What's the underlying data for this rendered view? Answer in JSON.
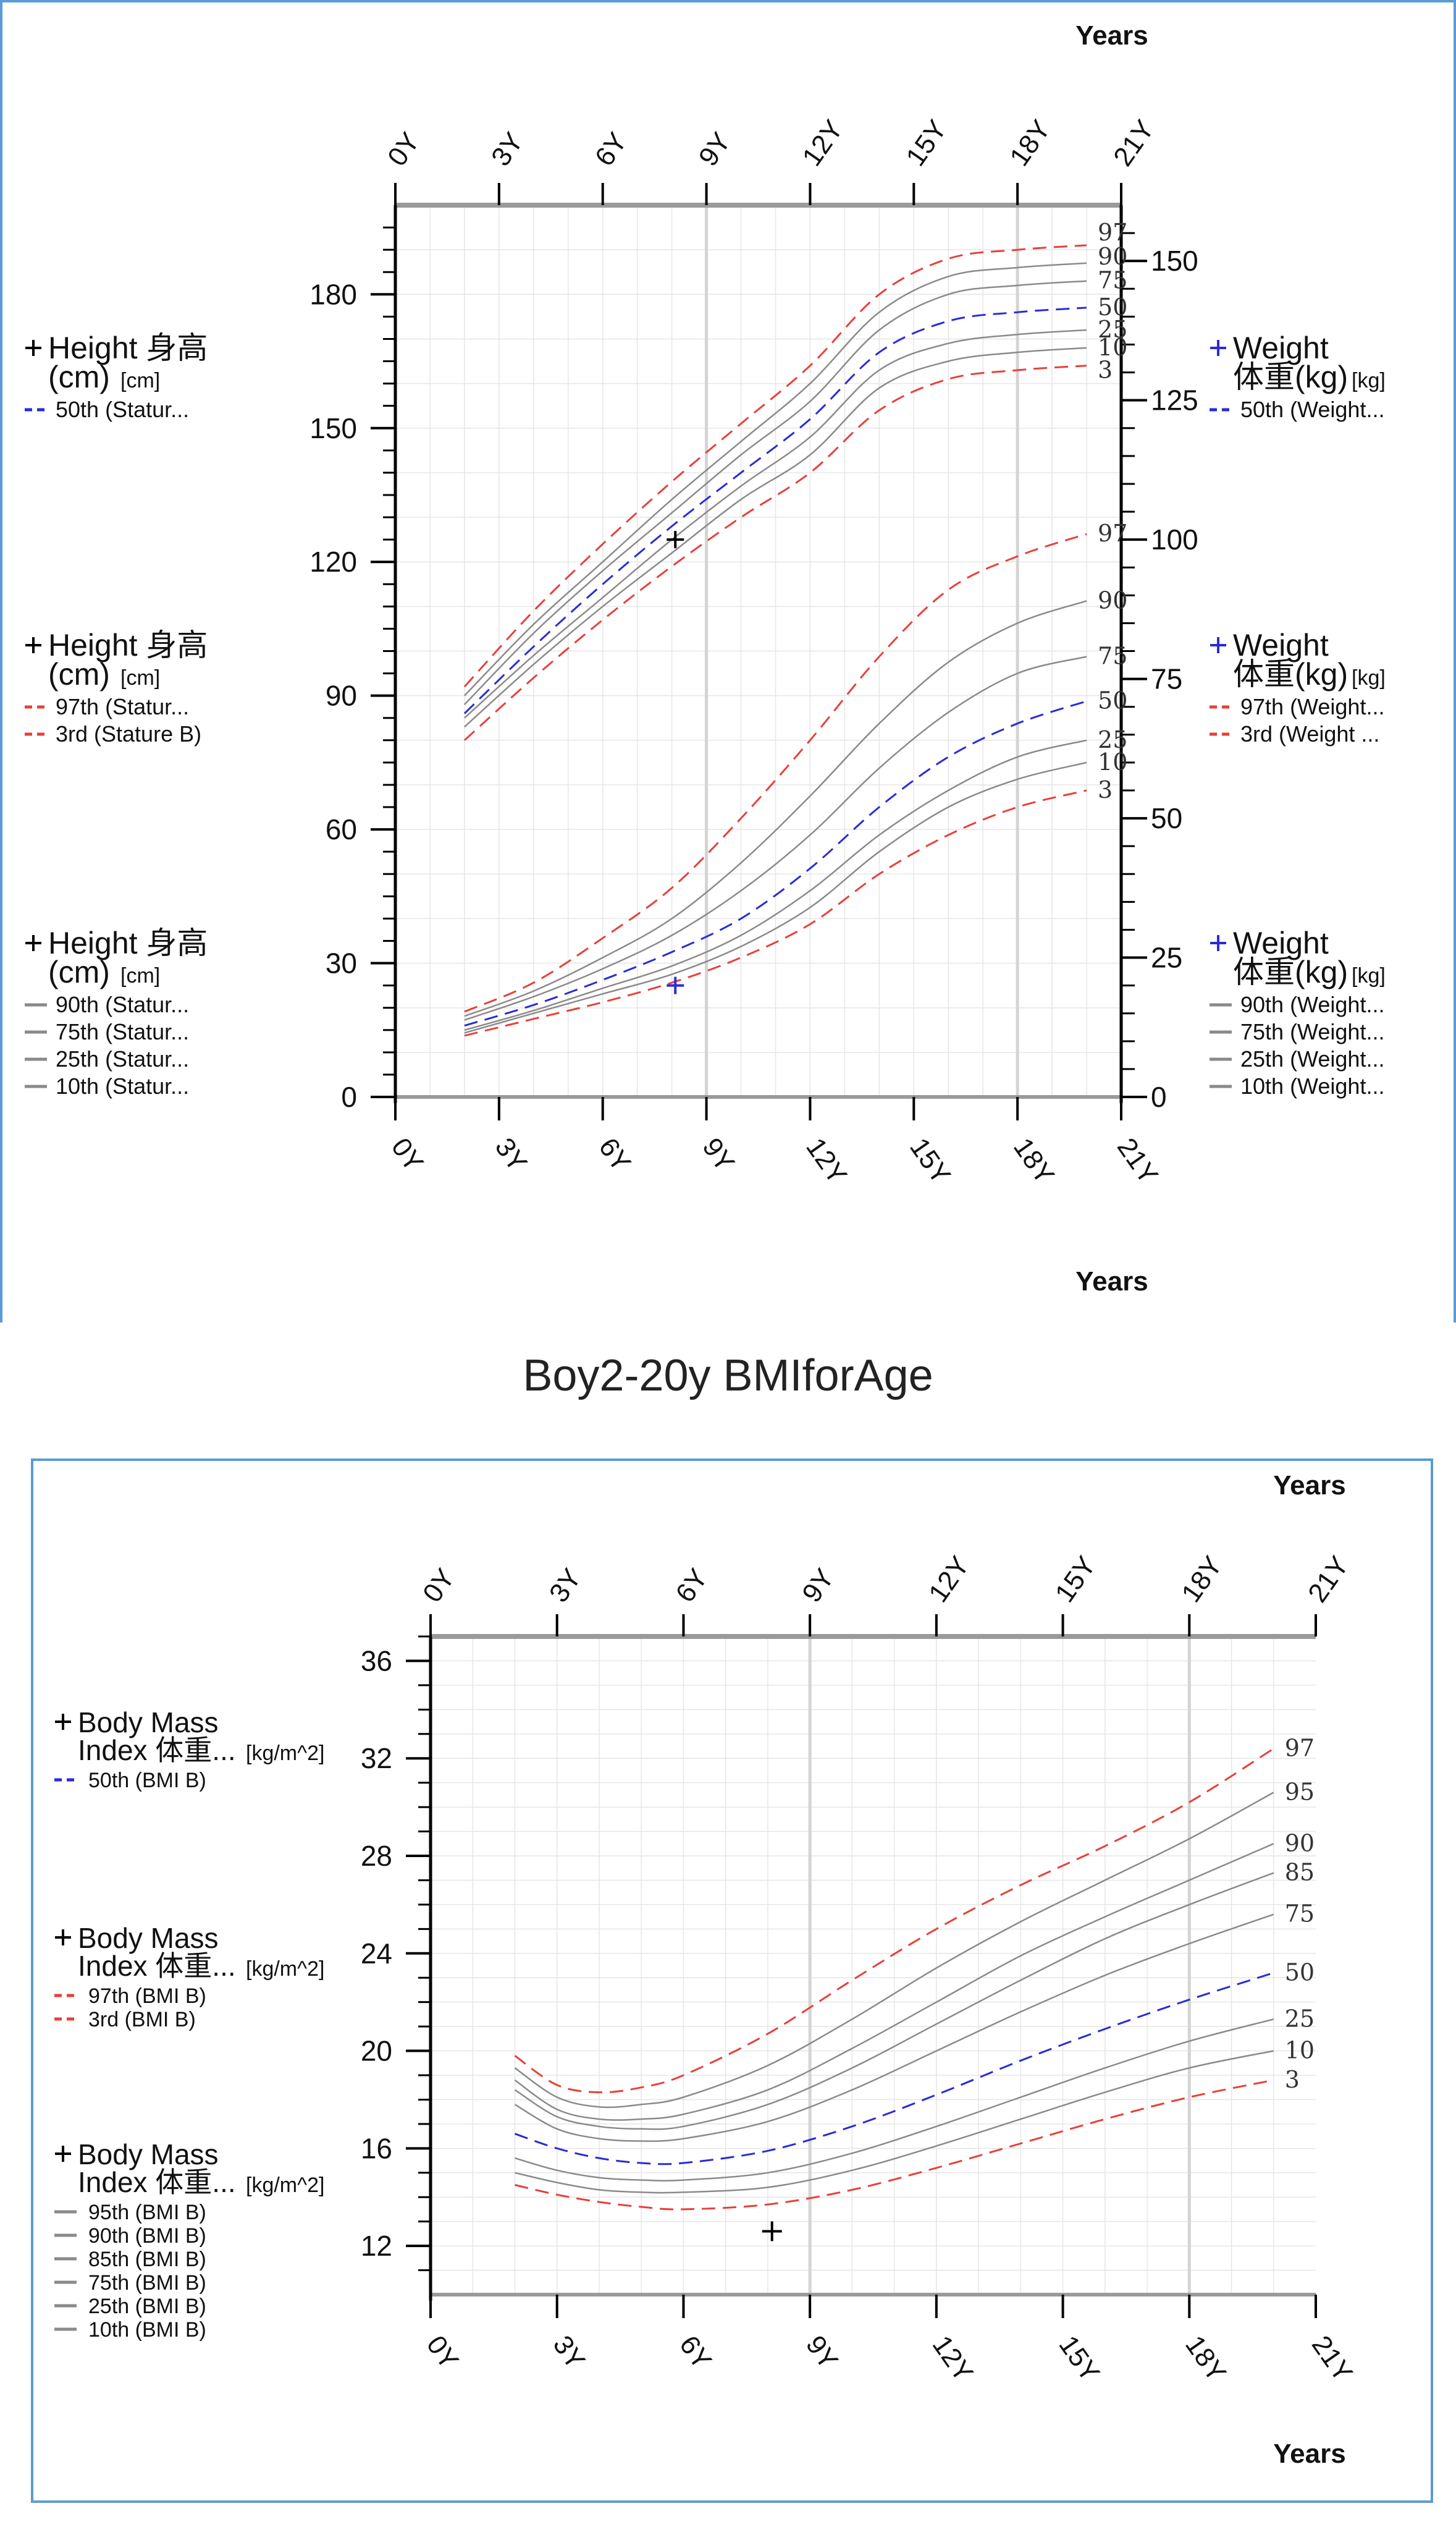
{
  "chart_data": [
    {
      "type": "line",
      "title": "",
      "x_axis": {
        "label": "Years",
        "range": [
          0,
          21
        ],
        "ticks": [
          "0Y",
          "3Y",
          "6Y",
          "9Y",
          "12Y",
          "15Y",
          "18Y",
          "21Y"
        ]
      },
      "left_axis": {
        "label": "Height 身高 (cm)",
        "unit": "[cm]",
        "range": [
          0,
          200
        ],
        "ticks": [
          "0",
          "30",
          "60",
          "90",
          "120",
          "150",
          "180"
        ]
      },
      "right_axis": {
        "label": "Weight 体重(kg)",
        "unit": "[kg]",
        "range": [
          0,
          160
        ],
        "ticks": [
          "0",
          "25",
          "50",
          "75",
          "100",
          "125",
          "150"
        ]
      },
      "legend_groups": [
        {
          "title_a": "Height 身高",
          "title_b": "(cm)",
          "unit": "[cm]",
          "side": "left",
          "items": [
            {
              "text": "50th (Statur...",
              "style": "dashed-blue"
            }
          ]
        },
        {
          "title_a": "Height 身高",
          "title_b": "(cm)",
          "unit": "[cm]",
          "side": "left",
          "items": [
            {
              "text": "97th (Statur...",
              "style": "dashed-red"
            },
            {
              "text": "3rd (Stature B)",
              "style": "dashed-red"
            }
          ]
        },
        {
          "title_a": "Height 身高",
          "title_b": "(cm)",
          "unit": "[cm]",
          "side": "left",
          "items": [
            {
              "text": "90th (Statur...",
              "style": "solid-gray"
            },
            {
              "text": "75th (Statur...",
              "style": "solid-gray"
            },
            {
              "text": "25th (Statur...",
              "style": "solid-gray"
            },
            {
              "text": "10th (Statur...",
              "style": "solid-gray"
            }
          ]
        },
        {
          "title_a": "Weight",
          "title_b": "体重(kg)",
          "unit": "[kg]",
          "side": "right",
          "items": [
            {
              "text": "50th (Weight...",
              "style": "dashed-blue"
            }
          ]
        },
        {
          "title_a": "Weight",
          "title_b": "体重(kg)",
          "unit": "[kg]",
          "side": "right",
          "items": [
            {
              "text": "97th (Weight...",
              "style": "dashed-red"
            },
            {
              "text": "3rd (Weight ...",
              "style": "dashed-red"
            }
          ]
        },
        {
          "title_a": "Weight",
          "title_b": "体重(kg)",
          "unit": "[kg]",
          "side": "right",
          "items": [
            {
              "text": "90th (Weight...",
              "style": "solid-gray"
            },
            {
              "text": "75th (Weight...",
              "style": "solid-gray"
            },
            {
              "text": "25th (Weight...",
              "style": "solid-gray"
            },
            {
              "text": "10th (Weight...",
              "style": "solid-gray"
            }
          ]
        }
      ],
      "stature_curves": {
        "axis": "left",
        "x": [
          2,
          4,
          6,
          8,
          10,
          12,
          14,
          16,
          18,
          20
        ],
        "series": [
          {
            "name": "97",
            "style": "dashed-red",
            "values": [
              92,
              109,
              124,
              138,
              151,
              164,
              180,
              188,
              190,
              191
            ]
          },
          {
            "name": "90",
            "style": "solid-gray",
            "values": [
              90,
              106,
              120,
              134,
              147,
              160,
              176,
              184,
              186,
              187
            ]
          },
          {
            "name": "75",
            "style": "solid-gray",
            "values": [
              88,
              104,
              118,
              131,
              144,
              156,
              172,
              180,
              182,
              183
            ]
          },
          {
            "name": "50",
            "style": "dashed-blue",
            "values": [
              86,
              101,
              115,
              128,
              140,
              152,
              167,
              174,
              176,
              177
            ]
          },
          {
            "name": "25",
            "style": "solid-gray",
            "values": [
              85,
              99,
              112,
              125,
              137,
              148,
              163,
              169,
              171,
              172
            ]
          },
          {
            "name": "10",
            "style": "solid-gray",
            "values": [
              83,
              97,
              110,
              122,
              134,
              144,
              159,
              165,
              167,
              168
            ]
          },
          {
            "name": "3",
            "style": "dashed-red",
            "values": [
              80,
              94,
              107,
              119,
              130,
              140,
              154,
              161,
              163,
              164
            ]
          }
        ]
      },
      "weight_curves": {
        "axis": "right",
        "x": [
          2,
          4,
          6,
          8,
          10,
          12,
          14,
          16,
          18,
          20
        ],
        "series": [
          {
            "name": "97",
            "style": "dashed-red",
            "values": [
              15.3,
              20.5,
              28.5,
              37.5,
              50,
              64,
              79,
              91,
              97,
              101
            ]
          },
          {
            "name": "90",
            "style": "solid-gray",
            "values": [
              14.5,
              19,
              25,
              32,
              42,
              54,
              67,
              78,
              85,
              89
            ]
          },
          {
            "name": "75",
            "style": "solid-gray",
            "values": [
              13.8,
              18,
              23,
              29,
              37,
              47,
              59,
              69,
              76,
              79
            ]
          },
          {
            "name": "50",
            "style": "dashed-blue",
            "values": [
              12.8,
              16.5,
              21,
              26,
              32,
              41,
              52,
              61,
              67,
              71
            ]
          },
          {
            "name": "25",
            "style": "solid-gray",
            "values": [
              12,
              15.5,
              19.5,
              23.5,
              29,
              37,
              47,
              55,
              61,
              64
            ]
          },
          {
            "name": "10",
            "style": "solid-gray",
            "values": [
              11.5,
              15,
              18.5,
              22,
              27,
              34,
              44,
              52,
              57,
              60
            ]
          },
          {
            "name": "3",
            "style": "dashed-red",
            "values": [
              11,
              14,
              17,
              20.5,
              25,
              31,
              40,
              47,
              52,
              55
            ]
          }
        ]
      },
      "points": [
        {
          "axis": "left",
          "x": 8.1,
          "y": 125
        },
        {
          "axis": "right",
          "x": 8.1,
          "y": 20
        }
      ]
    },
    {
      "type": "line",
      "title": "Boy2-20y BMIforAge",
      "x_axis": {
        "label": "Years",
        "range": [
          0,
          21
        ],
        "ticks": [
          "0Y",
          "3Y",
          "6Y",
          "9Y",
          "12Y",
          "15Y",
          "18Y",
          "21Y"
        ]
      },
      "y_axis": {
        "label": "Body Mass Index 体重...",
        "unit": "[kg/m^2]",
        "range": [
          10,
          37
        ],
        "ticks": [
          "12",
          "16",
          "20",
          "24",
          "28",
          "32",
          "36"
        ]
      },
      "legend_groups": [
        {
          "title_a": "Body Mass",
          "title_b": "Index 体重...",
          "unit": "[kg/m^2]",
          "items": [
            {
              "text": "50th (BMI B)",
              "style": "dashed-blue"
            }
          ]
        },
        {
          "title_a": "Body Mass",
          "title_b": "Index 体重...",
          "unit": "[kg/m^2]",
          "items": [
            {
              "text": "97th (BMI B)",
              "style": "dashed-red"
            },
            {
              "text": "3rd (BMI B)",
              "style": "dashed-red"
            }
          ]
        },
        {
          "title_a": "Body Mass",
          "title_b": "Index 体重...",
          "unit": "[kg/m^2]",
          "items": [
            {
              "text": "95th (BMI B)",
              "style": "solid-gray"
            },
            {
              "text": "90th (BMI B)",
              "style": "solid-gray"
            },
            {
              "text": "85th (BMI B)",
              "style": "solid-gray"
            },
            {
              "text": "75th (BMI B)",
              "style": "solid-gray"
            },
            {
              "text": "25th (BMI B)",
              "style": "solid-gray"
            },
            {
              "text": "10th (BMI B)",
              "style": "solid-gray"
            }
          ]
        }
      ],
      "x": [
        2,
        3,
        4,
        5,
        6,
        8,
        10,
        12,
        14,
        16,
        18,
        20
      ],
      "series": [
        {
          "name": "97",
          "style": "dashed-red",
          "values": [
            19.8,
            18.6,
            18.3,
            18.5,
            19.0,
            20.7,
            22.9,
            25.0,
            26.8,
            28.4,
            30.2,
            32.4
          ]
        },
        {
          "name": "95",
          "style": "solid-gray",
          "values": [
            19.3,
            18.1,
            17.7,
            17.8,
            18.1,
            19.4,
            21.3,
            23.4,
            25.3,
            27.0,
            28.7,
            30.6
          ]
        },
        {
          "name": "90",
          "style": "solid-gray",
          "values": [
            18.8,
            17.6,
            17.2,
            17.2,
            17.4,
            18.4,
            20.1,
            22.0,
            23.9,
            25.5,
            27.0,
            28.5
          ]
        },
        {
          "name": "85",
          "style": "solid-gray",
          "values": [
            18.4,
            17.3,
            16.9,
            16.8,
            16.9,
            17.8,
            19.3,
            21.1,
            22.9,
            24.6,
            26.0,
            27.3
          ]
        },
        {
          "name": "75",
          "style": "solid-gray",
          "values": [
            17.8,
            16.8,
            16.4,
            16.3,
            16.4,
            17.1,
            18.4,
            20.0,
            21.6,
            23.1,
            24.4,
            25.6
          ]
        },
        {
          "name": "50",
          "style": "dashed-blue",
          "values": [
            16.6,
            16.0,
            15.6,
            15.4,
            15.4,
            15.9,
            16.9,
            18.2,
            19.6,
            20.9,
            22.1,
            23.2
          ]
        },
        {
          "name": "25",
          "style": "solid-gray",
          "values": [
            15.6,
            15.1,
            14.8,
            14.7,
            14.7,
            15.0,
            15.8,
            16.9,
            18.1,
            19.3,
            20.4,
            21.3
          ]
        },
        {
          "name": "10",
          "style": "solid-gray",
          "values": [
            15.0,
            14.6,
            14.3,
            14.2,
            14.2,
            14.4,
            15.1,
            16.1,
            17.2,
            18.3,
            19.3,
            20.0
          ]
        },
        {
          "name": "3",
          "style": "dashed-red",
          "values": [
            14.5,
            14.1,
            13.8,
            13.6,
            13.5,
            13.7,
            14.3,
            15.2,
            16.2,
            17.2,
            18.1,
            18.8
          ]
        }
      ],
      "points": [
        {
          "x": 8.1,
          "y": 12.6
        }
      ]
    }
  ],
  "colors": {
    "red": "#e8403a",
    "blue": "#2b2bd6",
    "gray": "#8a8a8a",
    "frame": "#5b9bd5",
    "axis": "#000000",
    "grid": "#e6e6e6"
  }
}
